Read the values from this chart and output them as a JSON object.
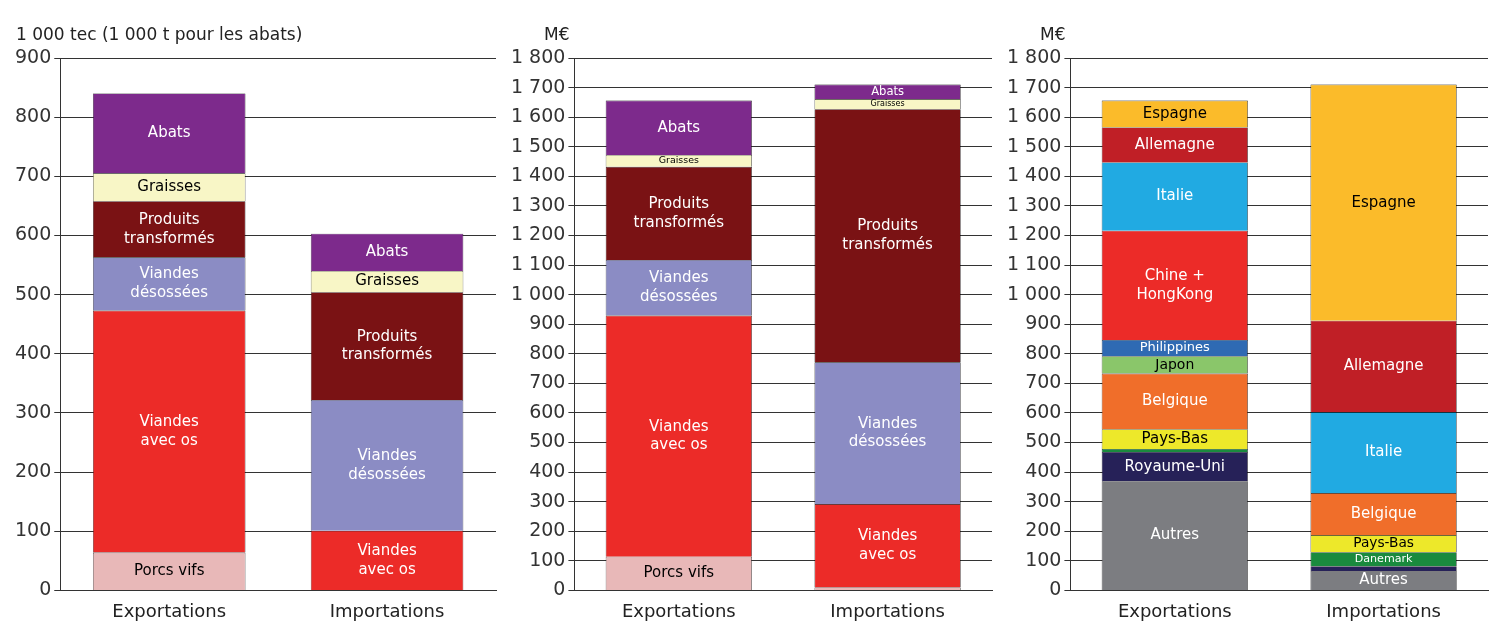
{
  "chart_data": [
    {
      "type": "bar",
      "stacked": true,
      "ylabel": "1 000 tec (1 000 t pour les abats)",
      "categories": [
        "Exportations",
        "Importations"
      ],
      "ylim": [
        0,
        900
      ],
      "yticks": [
        0,
        100,
        200,
        300,
        400,
        500,
        600,
        700,
        800,
        900
      ],
      "grid": "y",
      "legend": false,
      "series": [
        {
          "name": "Porcs vifs",
          "color": "#e8b8b8",
          "values": [
            64,
            null
          ]
        },
        {
          "name": "Viandes avec os",
          "color": "#ec2b28",
          "values": [
            409,
            101
          ]
        },
        {
          "name": "Viandes désossées",
          "color": "#8b8cc4",
          "values": [
            90,
            221
          ]
        },
        {
          "name": "Produits transformés",
          "color": "#7a1214",
          "values": [
            95,
            182
          ]
        },
        {
          "name": "Graisses",
          "color": "#f8f6c6",
          "values": [
            47,
            36
          ]
        },
        {
          "name": "Abats",
          "color": "#7d2a8c",
          "values": [
            135,
            63
          ]
        }
      ]
    },
    {
      "type": "bar",
      "stacked": true,
      "ylabel": "M€",
      "categories": [
        "Exportations",
        "Importations"
      ],
      "ylim": [
        0,
        1800
      ],
      "yticks": [
        0,
        100,
        200,
        300,
        400,
        500,
        600,
        700,
        800,
        900,
        {
          "value": 1000,
          "label": "1 000"
        },
        {
          "value": 1100,
          "label": "1 100"
        },
        {
          "value": 1200,
          "label": "1 200"
        },
        {
          "value": 1300,
          "label": "1 300"
        },
        {
          "value": 1400,
          "label": "1 400"
        },
        {
          "value": 1500,
          "label": "1 500"
        },
        {
          "value": 1600,
          "label": "1 600"
        },
        {
          "value": 1700,
          "label": "1 700"
        },
        {
          "value": 1800,
          "label": "1 800"
        }
      ],
      "grid": "y",
      "legend": false,
      "series": [
        {
          "name": "Porcs vifs",
          "color": "#e8b8b8",
          "values": [
            114,
            10
          ]
        },
        {
          "name": "Viandes avec os",
          "color": "#ec2b28",
          "values": [
            815,
            282
          ]
        },
        {
          "name": "Viandes désossées",
          "color": "#8b8cc4",
          "values": [
            188,
            479
          ]
        },
        {
          "name": "Produits transformés",
          "color": "#7a1214",
          "values": [
            315,
            856
          ]
        },
        {
          "name": "Graisses",
          "color": "#f8f6c6",
          "values": [
            40,
            34
          ]
        },
        {
          "name": "Abats",
          "color": "#7d2a8c",
          "values": [
            184,
            49
          ]
        }
      ]
    },
    {
      "type": "bar",
      "stacked": true,
      "ylabel": "M€",
      "categories": [
        "Exportations",
        "Importations"
      ],
      "ylim": [
        0,
        1800
      ],
      "yticks": [
        0,
        100,
        200,
        300,
        400,
        500,
        600,
        700,
        800,
        900,
        {
          "value": 1000,
          "label": "1 000"
        },
        {
          "value": 1100,
          "label": "1 100"
        },
        {
          "value": 1200,
          "label": "1 200"
        },
        {
          "value": 1300,
          "label": "1 300"
        },
        {
          "value": 1400,
          "label": "1 400"
        },
        {
          "value": 1500,
          "label": "1 500"
        },
        {
          "value": 1600,
          "label": "1 600"
        },
        {
          "value": 1700,
          "label": "1 700"
        },
        {
          "value": 1800,
          "label": "1 800"
        }
      ],
      "grid": "y",
      "legend": false,
      "series": [
        {
          "name": "Autres",
          "color": "#7c7d81",
          "values": [
            369,
            66
          ]
        },
        {
          "name": "Royaume-Uni",
          "color": "#262158",
          "values": [
            99,
            16
          ]
        },
        {
          "name": "Danemark",
          "color": "#1a8a3e",
          "values": [
            10,
            47
          ]
        },
        {
          "name": "Pays-Bas",
          "color": "#ede82a",
          "values": [
            67,
            58
          ]
        },
        {
          "name": "Belgique",
          "color": "#f06e2a",
          "values": [
            188,
            142
          ]
        },
        {
          "name": "Japon",
          "color": "#8ac66a",
          "values": [
            59,
            null
          ]
        },
        {
          "name": "Philippines",
          "color": "#2f6ab3",
          "values": [
            55,
            null
          ]
        },
        {
          "name": "Chine + HongKong",
          "color": "#ec2b28",
          "values": [
            369,
            null
          ]
        },
        {
          "name": "Italie",
          "color": "#21aae2",
          "values": [
            231,
            274
          ]
        },
        {
          "name": "Allemagne",
          "color": "#c01f26",
          "values": [
            118,
            309
          ]
        },
        {
          "name": "Espagne",
          "color": "#fbbb2a",
          "values": [
            91,
            798
          ]
        }
      ]
    }
  ]
}
